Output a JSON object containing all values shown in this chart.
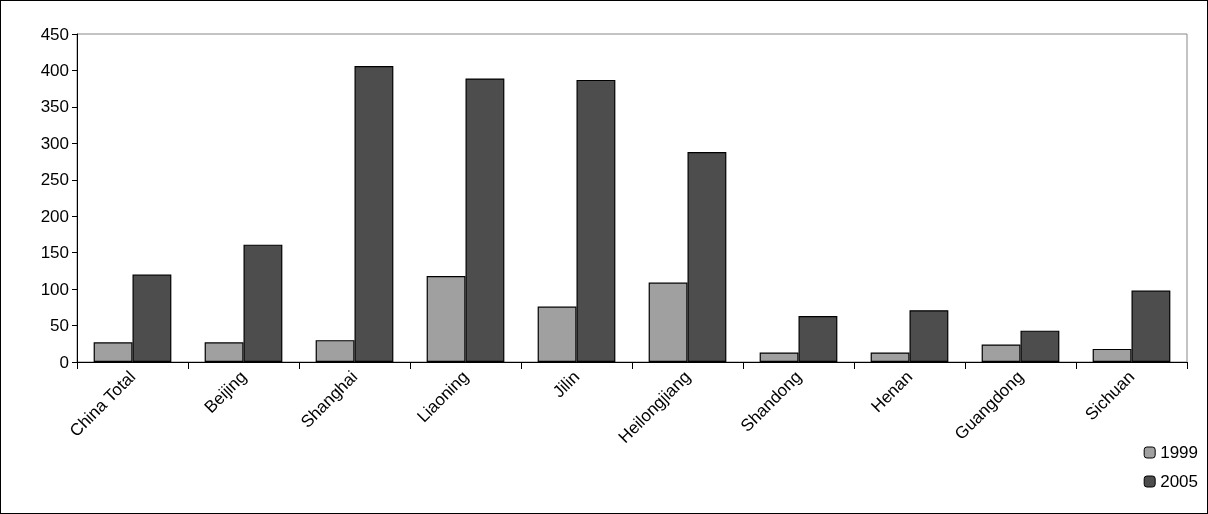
{
  "chart_data": {
    "type": "bar",
    "categories": [
      "China Total",
      "Beijing",
      "Shanghai",
      "Liaoning",
      "Jilin",
      "Heilongjiang",
      "Shandong",
      "Henan",
      "Guangdong",
      "Sichuan"
    ],
    "series": [
      {
        "name": "1999",
        "color": "#a0a0a0",
        "values": [
          27,
          27,
          30,
          118,
          76,
          109,
          13,
          13,
          24,
          18
        ]
      },
      {
        "name": "2005",
        "color": "#4d4d4d",
        "values": [
          120,
          161,
          406,
          389,
          387,
          288,
          63,
          71,
          43,
          98
        ]
      }
    ],
    "ylim": [
      0,
      450
    ],
    "yticks": [
      0,
      50,
      100,
      150,
      200,
      250,
      300,
      350,
      400,
      450
    ],
    "grid": false,
    "legend": "bottom right"
  }
}
